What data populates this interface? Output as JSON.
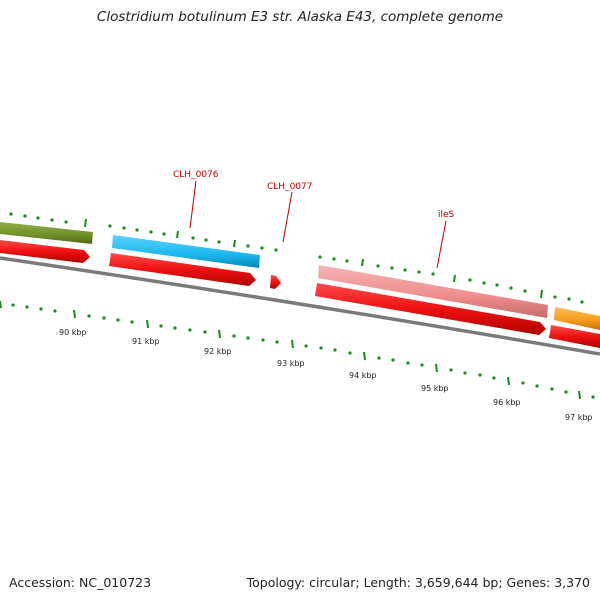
{
  "title": "Clostridium botulinum E3 str. Alaska E43, complete genome",
  "footer": {
    "accession": "Accession: NC_010723",
    "summary": "Topology: circular; Length: 3,659,644 bp; Genes: 3,370"
  },
  "colors": {
    "backbone": "#7a7a7a",
    "tick": "#1a8a1a",
    "gene_label": "#c00000",
    "cds_red": "#ee1111",
    "olive": "#6f8f2a",
    "cyan": "#1ab8ee",
    "pink": "#ee8c8c",
    "orange": "#f59a1a"
  },
  "kbp_labels": [
    "90 kbp",
    "91 kbp",
    "92 kbp",
    "93 kbp",
    "94 kbp",
    "95 kbp",
    "96 kbp",
    "97 kbp"
  ],
  "gene_labels": [
    "CLH_0076",
    "CLH_0077",
    "ileS"
  ],
  "features": [
    {
      "name": "olive-feature",
      "color": "olive"
    },
    {
      "name": "clh-0076-feature",
      "color": "cyan"
    },
    {
      "name": "ils-feature",
      "color": "pink"
    },
    {
      "name": "orange-feature",
      "color": "orange"
    }
  ]
}
